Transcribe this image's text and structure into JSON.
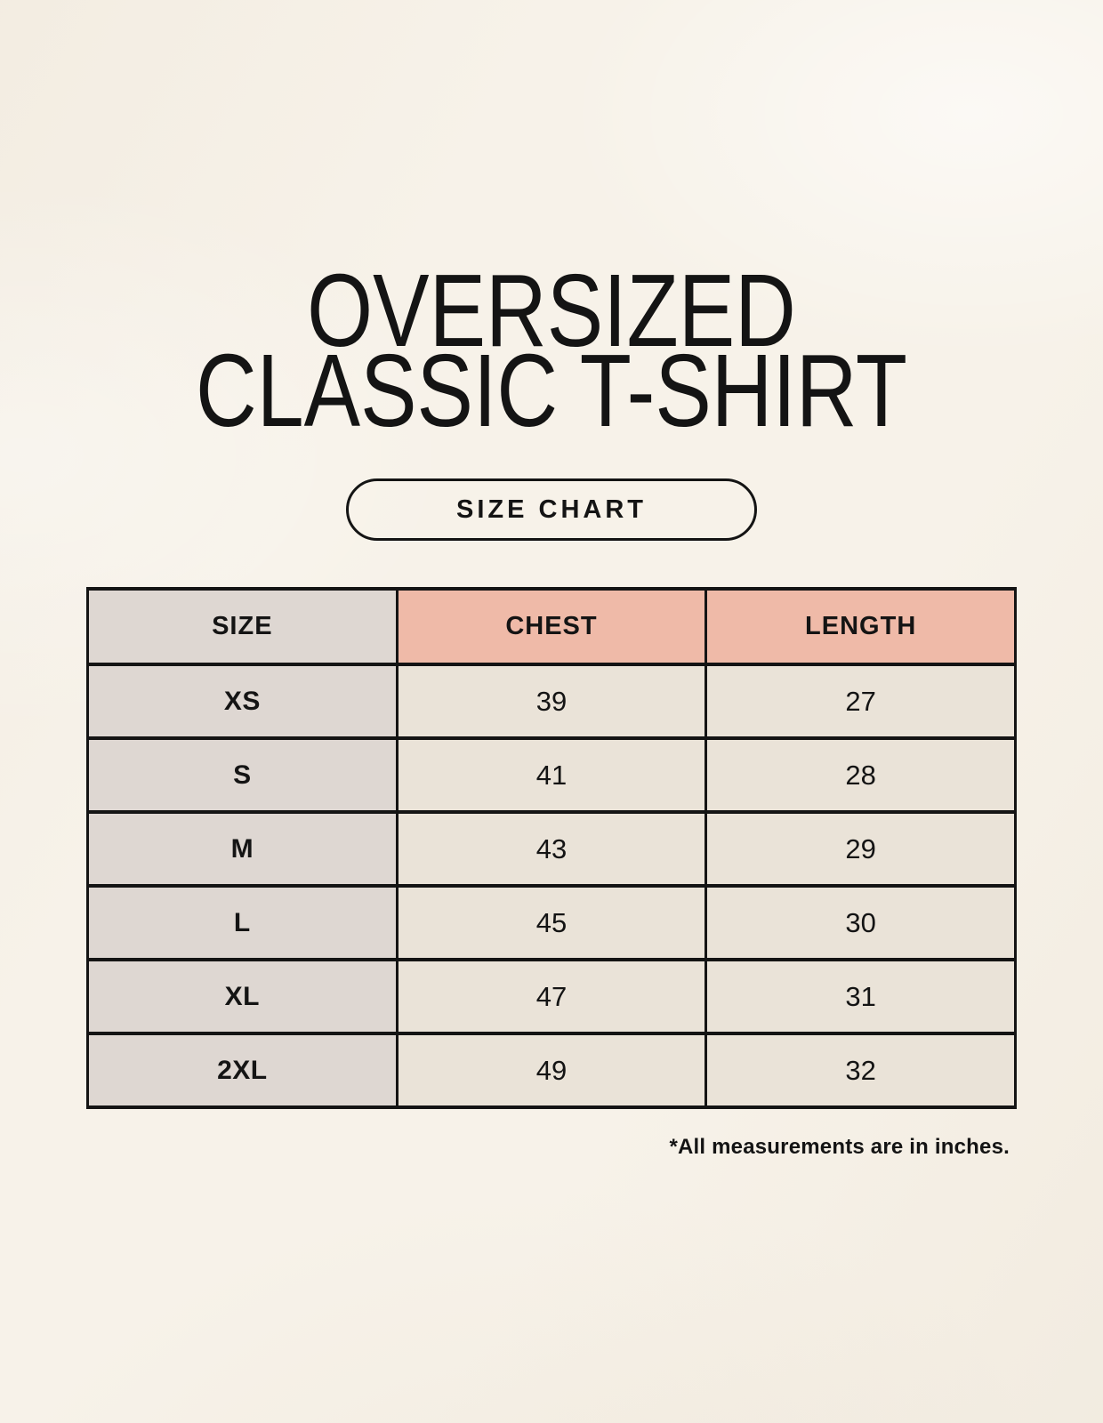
{
  "title": {
    "line1": "OVERSIZED",
    "line2": "CLASSIC T-SHIRT"
  },
  "badge": {
    "label": "SIZE CHART"
  },
  "footnote": "*All measurements are in inches.",
  "chart_data": {
    "type": "table",
    "title": "OVERSIZED CLASSIC T-SHIRT SIZE CHART",
    "columns": [
      "SIZE",
      "CHEST",
      "LENGTH"
    ],
    "rows": [
      [
        "XS",
        "39",
        "27"
      ],
      [
        "S",
        "41",
        "28"
      ],
      [
        "M",
        "43",
        "29"
      ],
      [
        "L",
        "45",
        "30"
      ],
      [
        "XL",
        "47",
        "31"
      ],
      [
        "2XL",
        "49",
        "32"
      ]
    ],
    "units": "inches"
  },
  "colors": {
    "background": "#f7f2e9",
    "header_accent": "#efbaa8",
    "size_column": "#ded7d2",
    "data_cell": "#eae3d8",
    "border": "#141414",
    "text": "#141414"
  }
}
